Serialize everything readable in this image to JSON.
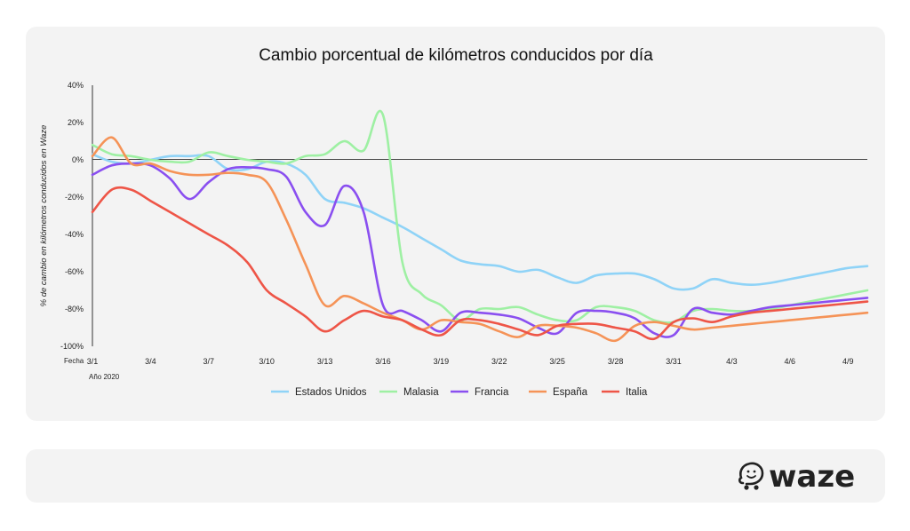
{
  "chart_data": {
    "type": "line",
    "title": "Cambio porcentual de kilómetros conducidos por día",
    "ylabel": "% de cambio en kilómetros conducidos en Waze",
    "xlabel": "Fecha",
    "x_sublabel": "Año 2020",
    "ylim": [
      -100,
      40
    ],
    "yticks": [
      40,
      20,
      0,
      -20,
      -40,
      -60,
      -80,
      -100
    ],
    "ytick_labels": [
      "40%",
      "20%",
      "0%",
      "-20%",
      "-40%",
      "-60%",
      "-80%",
      "-100%"
    ],
    "x": [
      1,
      2,
      3,
      4,
      5,
      6,
      7,
      8,
      9,
      10,
      11,
      12,
      13,
      14,
      15,
      16,
      17,
      18,
      19,
      20,
      21,
      22,
      23,
      24,
      25,
      26,
      27,
      28,
      29,
      30,
      31,
      32,
      33,
      34,
      35,
      36,
      37,
      38,
      39,
      40,
      41
    ],
    "xticks": [
      1,
      4,
      7,
      10,
      13,
      16,
      19,
      22,
      25,
      28,
      31,
      34,
      37,
      40
    ],
    "xtick_labels": [
      "3/1",
      "3/4",
      "3/7",
      "3/10",
      "3/13",
      "3/16",
      "3/19",
      "3/22",
      "3/25",
      "3/28",
      "3/31",
      "4/3",
      "4/6",
      "4/9"
    ],
    "zero_line": true,
    "legend_position": "bottom",
    "series": [
      {
        "name": "Estados Unidos",
        "color": "#8fd3f7",
        "values": [
          3,
          -1,
          -2,
          0,
          2,
          2,
          2,
          -5,
          -5,
          -1,
          -2,
          -8,
          -21,
          -23,
          -26,
          -31,
          -36,
          -42,
          -48,
          -54,
          -56,
          -57,
          -60,
          -59,
          -63,
          -66,
          -62,
          -61,
          -61,
          -64,
          -69,
          -69,
          -64,
          -66,
          -67,
          -66,
          -64,
          -62,
          -60,
          -58,
          -57
        ]
      },
      {
        "name": "Malasia",
        "color": "#9ef0a3",
        "values": [
          8,
          3,
          2,
          0,
          -1,
          -1,
          4,
          2,
          0,
          -1,
          -2,
          2,
          3,
          10,
          5,
          24,
          -55,
          -72,
          -78,
          -86,
          -80,
          -80,
          -79,
          -83,
          -86,
          -86,
          -79,
          -79,
          -81,
          -86,
          -87,
          -81,
          -80,
          -81,
          -81,
          -80,
          -78,
          -76,
          -74,
          -72,
          -70
        ]
      },
      {
        "name": "Francia",
        "color": "#8a4ff0",
        "values": [
          -8,
          -3,
          -2,
          -3,
          -10,
          -21,
          -12,
          -5,
          -4,
          -5,
          -9,
          -28,
          -35,
          -14,
          -28,
          -78,
          -81,
          -86,
          -92,
          -82,
          -82,
          -83,
          -85,
          -90,
          -93,
          -82,
          -81,
          -82,
          -85,
          -93,
          -94,
          -80,
          -82,
          -83,
          -81,
          -79,
          -78,
          -77,
          -76,
          -75,
          -74
        ]
      },
      {
        "name": "España",
        "color": "#f59357",
        "values": [
          2,
          12,
          -2,
          -2,
          -6,
          -8,
          -8,
          -7,
          -8,
          -12,
          -32,
          -56,
          -78,
          -73,
          -77,
          -82,
          -86,
          -91,
          -86,
          -87,
          -88,
          -92,
          -95,
          -89,
          -89,
          -90,
          -93,
          -97,
          -89,
          -87,
          -89,
          -91,
          -90,
          -89,
          -88,
          -87,
          -86,
          -85,
          -84,
          -83,
          -82
        ]
      },
      {
        "name": "Italia",
        "color": "#ee5547",
        "values": [
          -28,
          -16,
          -16,
          -22,
          -28,
          -34,
          -40,
          -46,
          -55,
          -70,
          -77,
          -84,
          -92,
          -86,
          -81,
          -84,
          -86,
          -91,
          -94,
          -86,
          -86,
          -88,
          -91,
          -94,
          -89,
          -88,
          -88,
          -90,
          -92,
          -96,
          -87,
          -85,
          -87,
          -84,
          -82,
          -81,
          -80,
          -79,
          -78,
          -77,
          -76
        ]
      }
    ]
  },
  "logo": {
    "text": "waze"
  }
}
